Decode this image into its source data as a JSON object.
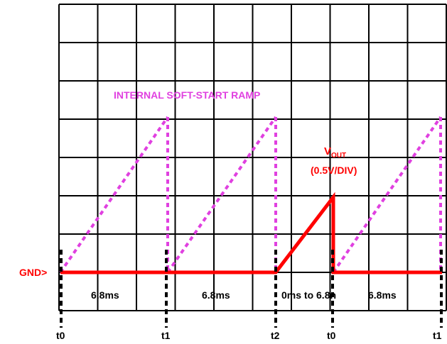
{
  "ramp_label": "INTERNAL SOFT-START RAMP",
  "vout": {
    "main": "V",
    "sub": "OUT",
    "scale": "(0.5V/DIV)"
  },
  "gnd_label": "GND>",
  "intervals": [
    "6.8ms",
    "6.8ms",
    "0ms to 6.8n",
    "6.8ms"
  ],
  "time_marks": [
    "t0",
    "t1",
    "t2",
    "t0",
    "t1"
  ],
  "colors": {
    "ramp": "#e040e0",
    "vout": "#ff0000",
    "grid": "#000000",
    "gnd_label": "#ff0000"
  }
}
